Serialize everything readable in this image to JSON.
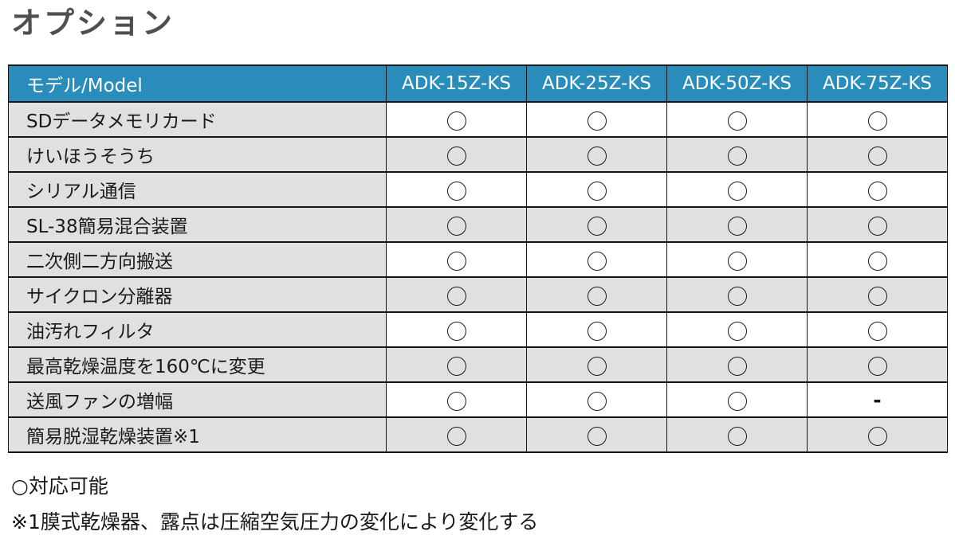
{
  "page_title": "オプション",
  "table": {
    "headers": [
      "モデル/Model",
      "ADK-15Z-KS",
      "ADK-25Z-KS",
      "ADK-50Z-KS",
      "ADK-75Z-KS"
    ],
    "rows": [
      {
        "label": "SDデータメモリカード",
        "values": [
          "○",
          "○",
          "○",
          "○"
        ]
      },
      {
        "label": "けいほうそうち",
        "values": [
          "○",
          "○",
          "○",
          "○"
        ]
      },
      {
        "label": "シリアル通信",
        "values": [
          "○",
          "○",
          "○",
          "○"
        ]
      },
      {
        "label": "SL-38簡易混合装置",
        "values": [
          "○",
          "○",
          "○",
          "○"
        ]
      },
      {
        "label": "二次側二方向搬送",
        "values": [
          "○",
          "○",
          "○",
          "○"
        ]
      },
      {
        "label": "サイクロン分離器",
        "values": [
          "○",
          "○",
          "○",
          "○"
        ]
      },
      {
        "label": "油汚れフィルタ",
        "values": [
          "○",
          "○",
          "○",
          "○"
        ]
      },
      {
        "label": "最高乾燥温度を160℃に変更",
        "values": [
          "○",
          "○",
          "○",
          "○"
        ]
      },
      {
        "label": "送風ファンの増幅",
        "values": [
          "○",
          "○",
          "○",
          "-"
        ]
      },
      {
        "label": "簡易脱湿乾燥装置※1",
        "values": [
          "○",
          "○",
          "○",
          "○"
        ]
      }
    ]
  },
  "legend": {
    "available": "○対応可能",
    "note": "※1膜式乾燥器、露点は圧縮空気圧力の変化により変化する"
  },
  "colors": {
    "header_bg": "#298CBA",
    "row_alt_bg": "#E0E0E0",
    "border": "#161616",
    "title_color": "#4F4F51",
    "text_color": "#1A1A1A"
  }
}
